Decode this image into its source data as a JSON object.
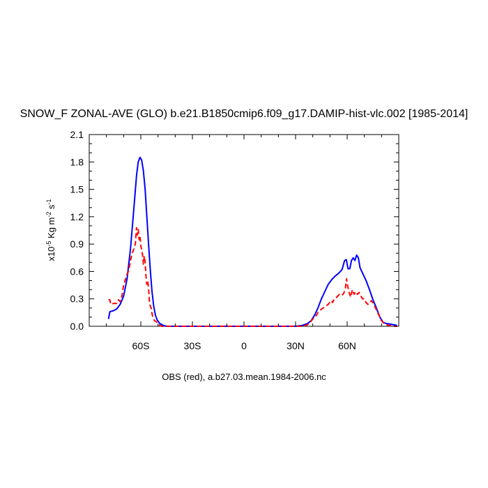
{
  "chart_data": {
    "type": "line",
    "title": "SNOW_F ZONAL-AVE (GLO) b.e21.B1850cmip6.f09_g17.DAMIP-hist-vlc.002 [1985-2014]",
    "ylabel": {
      "prefix": "x10",
      "exp1": "-5",
      "mid": " Kg m",
      "exp2": "-2",
      "mid2": " s",
      "exp3": "-1"
    },
    "xlabel": "OBS (red), a.b27.03.mean.1984-2006.nc",
    "xlim": [
      -90,
      90
    ],
    "ylim": [
      0,
      2.1
    ],
    "x_ticks": [
      {
        "value": -60,
        "label": "60S"
      },
      {
        "value": -30,
        "label": "30S"
      },
      {
        "value": 0,
        "label": "0"
      },
      {
        "value": 30,
        "label": "30N"
      },
      {
        "value": 60,
        "label": "60N"
      }
    ],
    "y_ticks": [
      {
        "value": 0.0,
        "label": "0.0"
      },
      {
        "value": 0.3,
        "label": "0.3"
      },
      {
        "value": 0.6,
        "label": "0.6"
      },
      {
        "value": 0.9,
        "label": "0.9"
      },
      {
        "value": 1.2,
        "label": "1.2"
      },
      {
        "value": 1.5,
        "label": "1.5"
      },
      {
        "value": 1.8,
        "label": "1.8"
      },
      {
        "value": 2.1,
        "label": "2.1"
      }
    ],
    "series": [
      {
        "color": "#0000ff",
        "dash": "solid",
        "points": [
          [
            -78.8,
            0.08
          ],
          [
            -78,
            0.16
          ],
          [
            -76,
            0.17
          ],
          [
            -74,
            0.19
          ],
          [
            -72,
            0.24
          ],
          [
            -70,
            0.33
          ],
          [
            -68,
            0.52
          ],
          [
            -66,
            0.85
          ],
          [
            -64,
            1.3
          ],
          [
            -62.5,
            1.65
          ],
          [
            -61.5,
            1.8
          ],
          [
            -60.5,
            1.85
          ],
          [
            -59.5,
            1.82
          ],
          [
            -58.5,
            1.7
          ],
          [
            -57.5,
            1.5
          ],
          [
            -56.5,
            1.2
          ],
          [
            -55.5,
            0.9
          ],
          [
            -54.5,
            0.62
          ],
          [
            -53.5,
            0.38
          ],
          [
            -52.5,
            0.22
          ],
          [
            -51.5,
            0.12
          ],
          [
            -50.5,
            0.07
          ],
          [
            -49,
            0.03
          ],
          [
            -47,
            0.01
          ],
          [
            -45,
            0.0
          ],
          [
            -40,
            0.0
          ],
          [
            -20,
            0.0
          ],
          [
            0,
            0.0
          ],
          [
            20,
            0.0
          ],
          [
            30,
            0.0
          ],
          [
            34,
            0.01
          ],
          [
            37,
            0.03
          ],
          [
            39,
            0.06
          ],
          [
            41,
            0.12
          ],
          [
            43,
            0.2
          ],
          [
            45,
            0.3
          ],
          [
            47,
            0.38
          ],
          [
            49,
            0.46
          ],
          [
            51,
            0.51
          ],
          [
            53,
            0.55
          ],
          [
            55,
            0.58
          ],
          [
            57,
            0.62
          ],
          [
            58.5,
            0.72
          ],
          [
            59.5,
            0.73
          ],
          [
            60.5,
            0.63
          ],
          [
            61.5,
            0.63
          ],
          [
            62.5,
            0.72
          ],
          [
            63.5,
            0.75
          ],
          [
            64.5,
            0.72
          ],
          [
            65.5,
            0.78
          ],
          [
            66.5,
            0.75
          ],
          [
            67.5,
            0.64
          ],
          [
            69,
            0.58
          ],
          [
            71,
            0.5
          ],
          [
            73,
            0.4
          ],
          [
            75,
            0.29
          ],
          [
            77,
            0.2
          ],
          [
            79,
            0.1
          ],
          [
            81,
            0.04
          ],
          [
            83,
            0.03
          ],
          [
            86,
            0.02
          ],
          [
            89,
            0.01
          ]
        ]
      },
      {
        "color": "#ff0000",
        "dash": "dashed",
        "points": [
          [
            -78.8,
            0.29
          ],
          [
            -78,
            0.29
          ],
          [
            -77.5,
            0.24
          ],
          [
            -76,
            0.25
          ],
          [
            -74,
            0.25
          ],
          [
            -73,
            0.29
          ],
          [
            -72,
            0.27
          ],
          [
            -71,
            0.33
          ],
          [
            -70,
            0.45
          ],
          [
            -69,
            0.51
          ],
          [
            -68,
            0.57
          ],
          [
            -67,
            0.61
          ],
          [
            -66,
            0.72
          ],
          [
            -65,
            0.8
          ],
          [
            -64,
            0.85
          ],
          [
            -63.2,
            0.9
          ],
          [
            -62.5,
            1.08
          ],
          [
            -62,
            1.0
          ],
          [
            -61.5,
            1.06
          ],
          [
            -61,
            0.95
          ],
          [
            -60.5,
            0.99
          ],
          [
            -60,
            0.88
          ],
          [
            -59.5,
            0.84
          ],
          [
            -59,
            0.78
          ],
          [
            -58.5,
            0.68
          ],
          [
            -58,
            0.77
          ],
          [
            -57.5,
            0.7
          ],
          [
            -57,
            0.55
          ],
          [
            -56.5,
            0.46
          ],
          [
            -56,
            0.5
          ],
          [
            -55.5,
            0.42
          ],
          [
            -55,
            0.28
          ],
          [
            -54.5,
            0.22
          ],
          [
            -54,
            0.2
          ],
          [
            -53.5,
            0.14
          ],
          [
            -53,
            0.1
          ],
          [
            -52,
            0.06
          ],
          [
            -51,
            0.05
          ],
          [
            -50,
            0.03
          ],
          [
            -49,
            0.01
          ],
          [
            -48,
            0.0
          ],
          [
            -40,
            0.0
          ],
          [
            -20,
            0.0
          ],
          [
            0,
            0.0
          ],
          [
            20,
            0.0
          ],
          [
            33,
            0.0
          ],
          [
            36,
            0.01
          ],
          [
            38,
            0.03
          ],
          [
            40,
            0.08
          ],
          [
            41.5,
            0.1
          ],
          [
            43,
            0.15
          ],
          [
            44.5,
            0.18
          ],
          [
            46,
            0.2
          ],
          [
            47.5,
            0.22
          ],
          [
            49,
            0.24
          ],
          [
            50.5,
            0.28
          ],
          [
            51.5,
            0.26
          ],
          [
            52.5,
            0.3
          ],
          [
            54,
            0.32
          ],
          [
            55.5,
            0.35
          ],
          [
            57,
            0.34
          ],
          [
            58,
            0.36
          ],
          [
            59,
            0.42
          ],
          [
            59.6,
            0.52
          ],
          [
            60.3,
            0.44
          ],
          [
            61,
            0.38
          ],
          [
            62,
            0.32
          ],
          [
            63,
            0.4
          ],
          [
            64,
            0.35
          ],
          [
            65,
            0.38
          ],
          [
            66,
            0.35
          ],
          [
            67,
            0.37
          ],
          [
            68,
            0.33
          ],
          [
            69,
            0.3
          ],
          [
            70,
            0.3
          ],
          [
            71,
            0.26
          ],
          [
            72,
            0.24
          ],
          [
            73,
            0.25
          ],
          [
            74,
            0.28
          ],
          [
            75,
            0.26
          ],
          [
            76,
            0.22
          ],
          [
            77,
            0.18
          ],
          [
            78,
            0.14
          ],
          [
            79,
            0.1
          ],
          [
            80,
            0.06
          ],
          [
            81,
            0.04
          ],
          [
            82,
            0.02
          ],
          [
            84,
            0.01
          ],
          [
            87,
            0.0
          ],
          [
            89,
            0.0
          ]
        ]
      }
    ],
    "grid": false
  }
}
